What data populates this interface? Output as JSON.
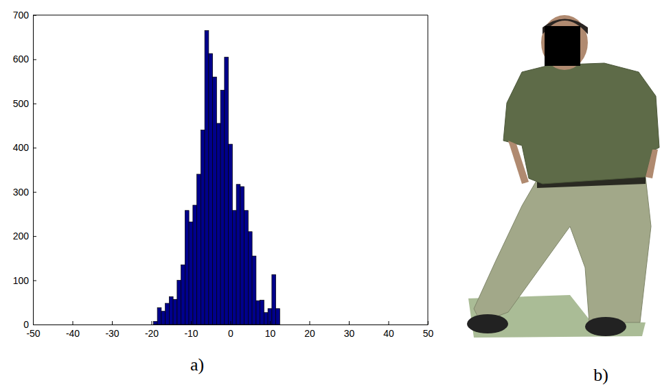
{
  "chart_data": {
    "type": "histogram",
    "title": "a)",
    "bins": [
      -19.5,
      -18.5,
      -17.5,
      -16.5,
      -15.5,
      -14.5,
      -13.5,
      -12.5,
      -11.5,
      -10.5,
      -9.5,
      -8.5,
      -7.5,
      -6.5,
      -5.5,
      -4.5,
      -3.5,
      -2.5,
      -1.5,
      -0.5,
      0.5,
      1.5,
      2.5,
      3.5,
      4.5,
      5.5,
      6.5,
      7.5,
      8.5,
      9.5,
      10.5,
      11.5,
      12.5
    ],
    "counts": [
      7,
      38,
      30,
      48,
      63,
      57,
      100,
      135,
      258,
      232,
      270,
      340,
      440,
      665,
      613,
      560,
      455,
      530,
      605,
      408,
      258,
      317,
      312,
      258,
      210,
      155,
      54,
      55,
      27,
      36,
      113,
      36
    ],
    "color": "#00008b",
    "xlim": [
      -50,
      50
    ],
    "xticks": [
      -50,
      -40,
      -30,
      -20,
      -10,
      0,
      10,
      20,
      30,
      40,
      50
    ],
    "ylim": [
      0,
      700
    ],
    "yticks": [
      0,
      100,
      200,
      300,
      400,
      500,
      600,
      700
    ]
  },
  "photo": {
    "label": "b)"
  }
}
